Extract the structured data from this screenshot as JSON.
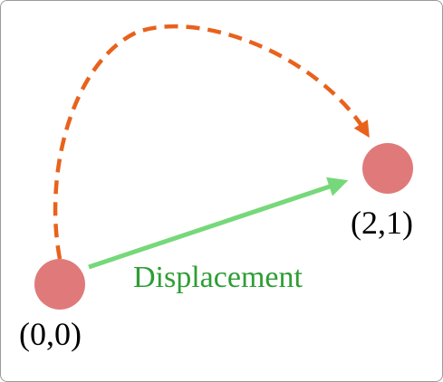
{
  "diagram": {
    "start_point": {
      "label": "(0,0)"
    },
    "end_point": {
      "label": "(2,1)"
    },
    "displacement": {
      "label": "Displacement"
    },
    "colors": {
      "frame_border": "#9a9a9a",
      "point_fill": "#e07a7a",
      "path_dashed": "#e8621c",
      "displacement_arrow": "#76d87a",
      "displacement_text": "#2e9e35"
    },
    "elements": {
      "curved_path": "dashed curved arrow from (0,0) to (2,1)",
      "straight_arrow": "solid straight arrow from (0,0) to (2,1)"
    }
  }
}
